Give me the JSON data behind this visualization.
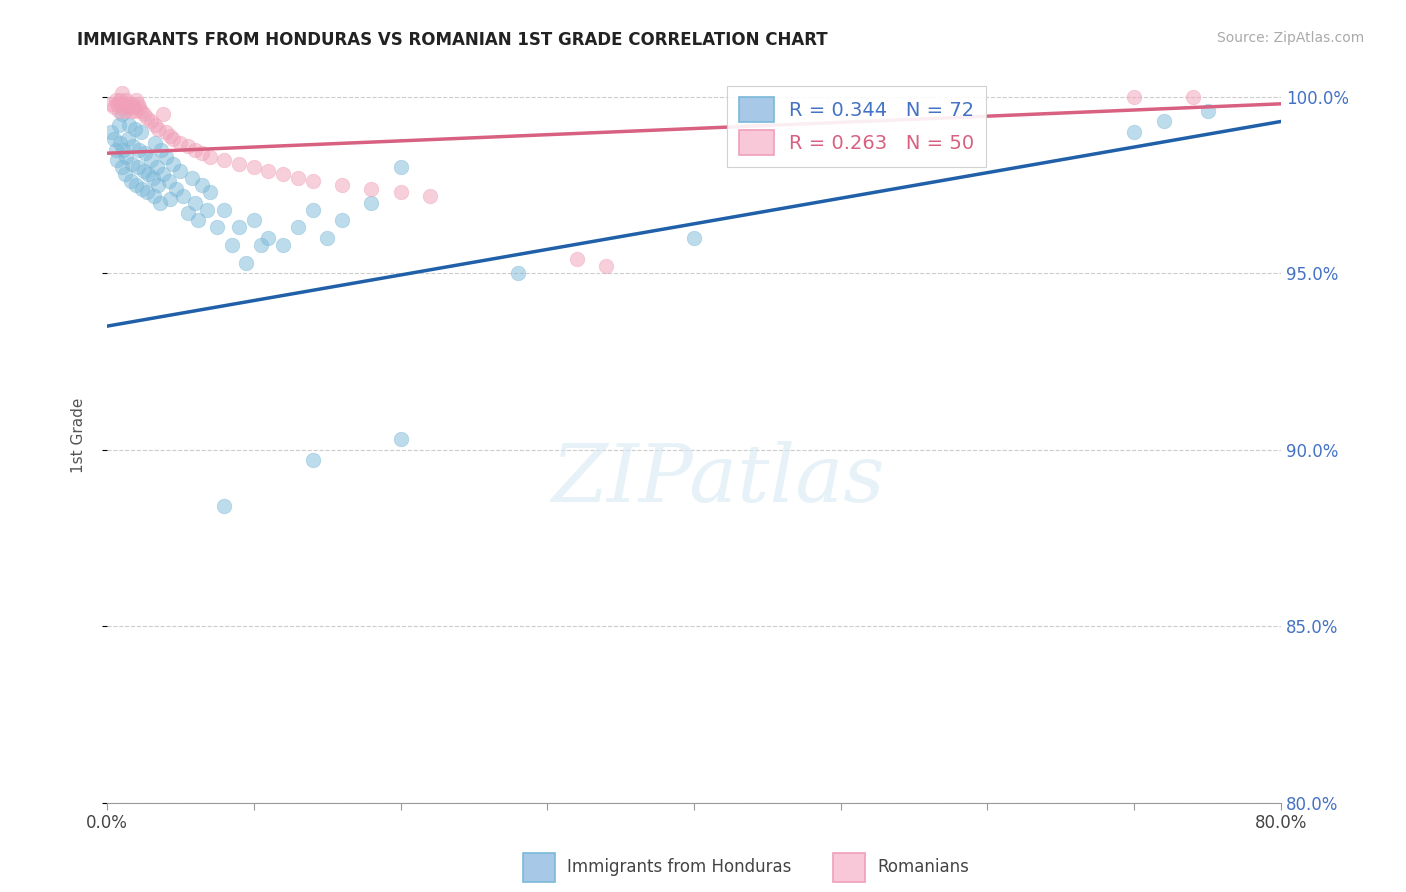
{
  "title": "IMMIGRANTS FROM HONDURAS VS ROMANIAN 1ST GRADE CORRELATION CHART",
  "source_text": "Source: ZipAtlas.com",
  "ylabel": "1st Grade",
  "x_min": 0.0,
  "x_max": 0.8,
  "y_min": 0.8,
  "y_max": 1.008,
  "y_ticks": [
    1.0,
    0.95,
    0.9,
    0.85,
    0.8
  ],
  "y_tick_labels": [
    "100.0%",
    "95.0%",
    "90.0%",
    "85.0%",
    "80.0%"
  ],
  "x_ticks": [
    0.0,
    0.1,
    0.2,
    0.3,
    0.4,
    0.5,
    0.6,
    0.7,
    0.8
  ],
  "x_tick_labels": [
    "0.0%",
    "",
    "",
    "",
    "",
    "",
    "",
    "",
    "80.0%"
  ],
  "legend_box_colors": [
    "#a8c8e8",
    "#f8c8d8"
  ],
  "blue_R": 0.344,
  "blue_N": 72,
  "pink_R": 0.263,
  "pink_N": 50,
  "blue_color": "#7ab8d8",
  "pink_color": "#f0a0b8",
  "blue_line_color": "#2060a8",
  "pink_line_color": "#d86080",
  "watermark_text": "ZIPatlas",
  "blue_line_y0": 0.935,
  "blue_line_y1": 0.993,
  "pink_line_y0": 0.984,
  "pink_line_y1": 0.998,
  "blue_scatter_x": [
    0.003,
    0.005,
    0.006,
    0.007,
    0.008,
    0.009,
    0.01,
    0.01,
    0.011,
    0.012,
    0.013,
    0.014,
    0.015,
    0.016,
    0.017,
    0.018,
    0.019,
    0.02,
    0.021,
    0.022,
    0.023,
    0.024,
    0.025,
    0.026,
    0.027,
    0.028,
    0.03,
    0.031,
    0.032,
    0.033,
    0.034,
    0.035,
    0.036,
    0.037,
    0.038,
    0.04,
    0.042,
    0.043,
    0.045,
    0.047,
    0.05,
    0.052,
    0.055,
    0.058,
    0.06,
    0.062,
    0.065,
    0.068,
    0.07,
    0.075,
    0.08,
    0.085,
    0.09,
    0.095,
    0.1,
    0.105,
    0.11,
    0.12,
    0.13,
    0.14,
    0.15,
    0.16,
    0.18,
    0.2,
    0.08,
    0.14,
    0.2,
    0.28,
    0.4,
    0.7,
    0.72,
    0.75
  ],
  "blue_scatter_y": [
    0.99,
    0.988,
    0.985,
    0.982,
    0.992,
    0.987,
    0.98,
    0.995,
    0.985,
    0.978,
    0.983,
    0.988,
    0.992,
    0.976,
    0.981,
    0.986,
    0.991,
    0.975,
    0.98,
    0.985,
    0.99,
    0.974,
    0.979,
    0.984,
    0.973,
    0.978,
    0.982,
    0.977,
    0.972,
    0.987,
    0.98,
    0.975,
    0.97,
    0.985,
    0.978,
    0.983,
    0.976,
    0.971,
    0.981,
    0.974,
    0.979,
    0.972,
    0.967,
    0.977,
    0.97,
    0.965,
    0.975,
    0.968,
    0.973,
    0.963,
    0.968,
    0.958,
    0.963,
    0.953,
    0.965,
    0.958,
    0.96,
    0.958,
    0.963,
    0.968,
    0.96,
    0.965,
    0.97,
    0.98,
    0.884,
    0.897,
    0.903,
    0.95,
    0.96,
    0.99,
    0.993,
    0.996
  ],
  "pink_scatter_x": [
    0.003,
    0.005,
    0.006,
    0.007,
    0.008,
    0.009,
    0.01,
    0.011,
    0.012,
    0.013,
    0.014,
    0.015,
    0.016,
    0.017,
    0.018,
    0.019,
    0.02,
    0.021,
    0.022,
    0.023,
    0.025,
    0.027,
    0.03,
    0.033,
    0.035,
    0.038,
    0.04,
    0.043,
    0.045,
    0.05,
    0.055,
    0.06,
    0.065,
    0.07,
    0.08,
    0.09,
    0.1,
    0.11,
    0.12,
    0.13,
    0.14,
    0.16,
    0.18,
    0.2,
    0.22,
    0.32,
    0.34,
    0.7,
    0.74,
    0.01
  ],
  "pink_scatter_y": [
    0.998,
    0.997,
    0.999,
    0.998,
    0.996,
    0.999,
    0.998,
    0.997,
    0.996,
    0.999,
    0.998,
    0.997,
    0.996,
    0.998,
    0.997,
    0.996,
    0.999,
    0.998,
    0.997,
    0.996,
    0.995,
    0.994,
    0.993,
    0.992,
    0.991,
    0.995,
    0.99,
    0.989,
    0.988,
    0.987,
    0.986,
    0.985,
    0.984,
    0.983,
    0.982,
    0.981,
    0.98,
    0.979,
    0.978,
    0.977,
    0.976,
    0.975,
    0.974,
    0.973,
    0.972,
    0.954,
    0.952,
    1.0,
    1.0,
    1.001
  ]
}
